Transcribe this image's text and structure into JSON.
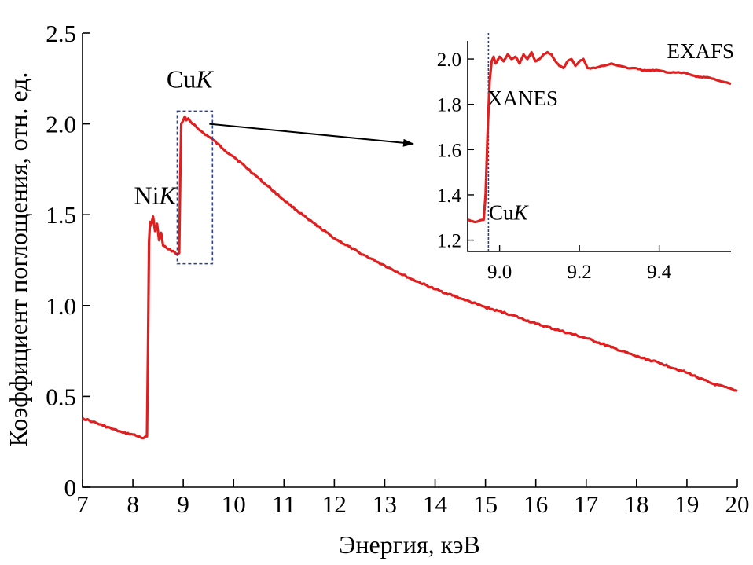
{
  "chart_data": [
    {
      "type": "line",
      "name": "main",
      "xlabel": "Энергия, кэВ",
      "ylabel": "Коэффициент поглощения, отн. ед.",
      "xlim": [
        7,
        20
      ],
      "ylim": [
        0,
        2.5
      ],
      "xticks": [
        "7",
        "8",
        "9",
        "10",
        "11",
        "12",
        "13",
        "14",
        "15",
        "16",
        "17",
        "18",
        "19",
        "20"
      ],
      "yticks": [
        "0",
        "0.5",
        "1.0",
        "1.5",
        "2.0",
        "2.5"
      ],
      "series": [
        {
          "name": "absorption",
          "color": "#e02020",
          "x": [
            7.0,
            7.2,
            7.4,
            7.6,
            7.8,
            8.0,
            8.1,
            8.2,
            8.28,
            8.3,
            8.32,
            8.34,
            8.36,
            8.4,
            8.44,
            8.48,
            8.52,
            8.56,
            8.6,
            8.7,
            8.8,
            8.88,
            8.92,
            8.94,
            8.96,
            9.0,
            9.03,
            9.06,
            9.1,
            9.15,
            9.2,
            9.3,
            9.4,
            9.5,
            9.6,
            9.8,
            10.0,
            10.5,
            11.0,
            11.5,
            12.0,
            12.5,
            13.0,
            13.5,
            14.0,
            14.5,
            15.0,
            15.5,
            16.0,
            16.5,
            17.0,
            17.5,
            18.0,
            18.5,
            19.0,
            19.5,
            20.0
          ],
          "y": [
            0.38,
            0.36,
            0.34,
            0.32,
            0.3,
            0.29,
            0.28,
            0.27,
            0.28,
            0.75,
            1.35,
            1.46,
            1.44,
            1.49,
            1.41,
            1.45,
            1.36,
            1.4,
            1.33,
            1.31,
            1.3,
            1.28,
            1.29,
            1.7,
            2.0,
            2.02,
            2.04,
            2.02,
            2.03,
            2.01,
            2.0,
            1.97,
            1.95,
            1.93,
            1.91,
            1.86,
            1.82,
            1.7,
            1.58,
            1.47,
            1.37,
            1.29,
            1.22,
            1.15,
            1.09,
            1.04,
            0.99,
            0.95,
            0.9,
            0.86,
            0.82,
            0.77,
            0.72,
            0.68,
            0.63,
            0.57,
            0.53
          ]
        }
      ],
      "annotations": [
        {
          "text_main": "Ni",
          "text_italic": "K",
          "at_x": 8.1,
          "at_y": 1.62
        },
        {
          "text_main": "Cu",
          "text_italic": "K",
          "at_x": 8.7,
          "at_y": 2.2
        }
      ],
      "highlight_region": {
        "x": [
          8.88,
          9.58
        ],
        "y": [
          1.23,
          2.07
        ],
        "style": "dashed",
        "color": "#2b3f9e"
      }
    },
    {
      "type": "line",
      "name": "inset",
      "xlim": [
        8.92,
        9.58
      ],
      "ylim": [
        1.15,
        2.08
      ],
      "xticks": [
        "9.0",
        "9.2",
        "9.4"
      ],
      "yticks": [
        "1.2",
        "1.4",
        "1.6",
        "1.8",
        "2.0"
      ],
      "series": [
        {
          "name": "absorption-zoom",
          "color": "#e02020",
          "x": [
            8.92,
            8.94,
            8.96,
            8.965,
            8.97,
            8.975,
            8.98,
            8.985,
            8.99,
            9.0,
            9.01,
            9.02,
            9.03,
            9.04,
            9.05,
            9.06,
            9.07,
            9.08,
            9.09,
            9.1,
            9.11,
            9.12,
            9.13,
            9.14,
            9.15,
            9.16,
            9.17,
            9.18,
            9.19,
            9.2,
            9.21,
            9.22,
            9.24,
            9.26,
            9.28,
            9.3,
            9.32,
            9.34,
            9.36,
            9.38,
            9.4,
            9.42,
            9.44,
            9.46,
            9.48,
            9.5,
            9.52,
            9.54,
            9.56,
            9.58
          ],
          "y": [
            1.29,
            1.28,
            1.29,
            1.4,
            1.68,
            1.9,
            1.99,
            2.01,
            1.98,
            2.01,
            1.99,
            2.02,
            2.0,
            2.01,
            1.98,
            2.02,
            2.0,
            2.03,
            1.99,
            2.0,
            2.02,
            2.03,
            2.02,
            1.99,
            1.97,
            1.96,
            1.99,
            2.0,
            1.97,
            1.99,
            2.0,
            1.96,
            1.96,
            1.97,
            1.98,
            1.97,
            1.96,
            1.96,
            1.95,
            1.95,
            1.95,
            1.94,
            1.94,
            1.94,
            1.93,
            1.92,
            1.92,
            1.91,
            1.9,
            1.89
          ]
        }
      ],
      "edge_marker": {
        "x": 8.972,
        "style": "dotted",
        "color": "#2b3f9e"
      },
      "annotations": [
        {
          "text": "EXAFS",
          "at_x": 9.38,
          "at_y": 2.01
        },
        {
          "text": "XANES",
          "at_x": 8.985,
          "at_y": 1.83
        },
        {
          "text_main": "Cu",
          "text_italic": "K",
          "at_x": 8.985,
          "at_y": 1.29
        }
      ]
    }
  ]
}
